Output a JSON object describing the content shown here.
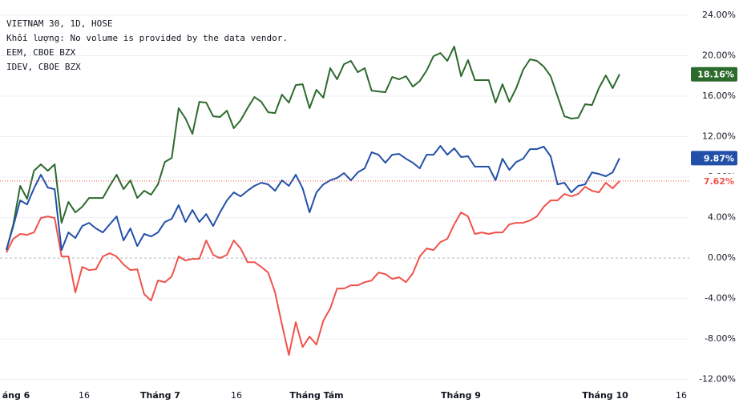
{
  "chart_data": {
    "type": "line",
    "legend_note": "Khối lượng: No volume is provided by the data vendor.",
    "x_labels": [
      "áng 6",
      "16",
      "Tháng 7",
      "16",
      "Tháng Tám",
      "Tháng 9",
      "Tháng 10",
      "16"
    ],
    "ylim": [
      -12.5,
      25.5
    ],
    "yticks": [
      {
        "value": 24,
        "label": "24.00%"
      },
      {
        "value": 20,
        "label": "20.00%"
      },
      {
        "value": 16,
        "label": "16.00%"
      },
      {
        "value": 12,
        "label": "12.00%"
      },
      {
        "value": 8,
        "label": "8.00%"
      },
      {
        "value": 4,
        "label": "4.00%"
      },
      {
        "value": 0,
        "label": "0.00%"
      },
      {
        "value": -4,
        "label": "-4.00%"
      },
      {
        "value": -8,
        "label": "-8.00%"
      },
      {
        "value": -12,
        "label": "-12.00%"
      }
    ],
    "grid": true,
    "series": [
      {
        "name": "VIETNAM 30, 1D, HOSE",
        "color": "#f0524a",
        "last_label": "7.62%",
        "values": [
          0.55,
          1.9,
          2.38,
          2.3,
          2.53,
          3.96,
          4.12,
          3.96,
          0.16,
          0.16,
          -3.4,
          -0.87,
          -1.19,
          -1.11,
          0.16,
          0.48,
          0.16,
          -0.63,
          -1.19,
          -1.11,
          -3.56,
          -4.2,
          -2.22,
          -2.38,
          -1.82,
          0.16,
          -0.24,
          -0.08,
          -0.08,
          1.74,
          0.32,
          0,
          0.32,
          1.74,
          0.95,
          -0.4,
          -0.4,
          -0.87,
          -1.43,
          -3.4,
          -6.57,
          -9.58,
          -6.33,
          -8.79,
          -7.76,
          -8.55,
          -6.18,
          -4.99,
          -3.01,
          -3.01,
          -2.69,
          -2.69,
          -2.38,
          -2.22,
          -1.43,
          -1.58,
          -2.06,
          -1.9,
          -2.38,
          -1.5,
          0.16,
          0.95,
          0.79,
          1.58,
          1.9,
          3.33,
          4.51,
          4.12,
          2.38,
          2.53,
          2.38,
          2.53,
          2.53,
          3.33,
          3.48,
          3.48,
          3.72,
          4.12,
          5.07,
          5.7,
          5.7,
          6.33,
          6.1,
          6.33,
          7.05,
          6.65,
          6.49,
          7.44,
          6.89,
          7.62
        ]
      },
      {
        "name": "EEM, CBOE BZX",
        "color": "#2d6a2d",
        "last_label": "18.16%",
        "values": [
          0.79,
          3.33,
          7.13,
          5.86,
          8.63,
          9.26,
          8.63,
          9.26,
          3.48,
          5.54,
          4.51,
          5.07,
          5.94,
          5.94,
          5.94,
          7.13,
          8.23,
          6.81,
          7.68,
          5.94,
          6.65,
          6.26,
          7.28,
          9.5,
          9.9,
          14.81,
          13.78,
          12.27,
          15.44,
          15.36,
          14.01,
          13.94,
          14.57,
          12.83,
          13.62,
          14.81,
          15.91,
          15.44,
          14.41,
          14.33,
          16.15,
          15.36,
          17.1,
          17.18,
          14.81,
          16.63,
          15.84,
          18.76,
          17.66,
          19.16,
          19.48,
          18.37,
          18.76,
          16.55,
          16.47,
          16.39,
          17.89,
          17.66,
          17.97,
          16.94,
          17.5,
          18.53,
          19.95,
          20.27,
          19.48,
          20.9,
          17.97,
          19.56,
          17.58,
          17.58,
          17.58,
          15.36,
          17.18,
          15.44,
          16.79,
          18.61,
          19.64,
          19.48,
          18.92,
          17.97,
          15.99,
          14.01,
          13.78,
          13.86,
          15.2,
          15.12,
          16.79,
          18.05,
          16.79,
          18.16
        ]
      },
      {
        "name": "IDEV, CBOE BZX",
        "color": "#2250a8",
        "last_label": "9.87%",
        "values": [
          0.79,
          3.17,
          5.7,
          5.3,
          6.89,
          8.23,
          6.97,
          6.81,
          0.79,
          2.53,
          1.98,
          3.17,
          3.48,
          2.93,
          2.53,
          3.33,
          4.12,
          1.74,
          2.93,
          1.19,
          2.38,
          2.14,
          2.53,
          3.56,
          3.88,
          5.23,
          3.56,
          4.75,
          3.56,
          4.35,
          3.17,
          4.51,
          5.7,
          6.49,
          6.1,
          6.65,
          7.13,
          7.44,
          7.28,
          6.65,
          7.68,
          7.13,
          8.23,
          6.89,
          4.51,
          6.49,
          7.28,
          7.68,
          7.92,
          8.39,
          7.68,
          8.47,
          8.87,
          10.45,
          10.21,
          9.42,
          10.21,
          10.29,
          9.82,
          9.42,
          8.87,
          10.21,
          10.21,
          11.08,
          10.21,
          10.85,
          9.98,
          10.06,
          9.03,
          9.03,
          9.03,
          7.68,
          9.82,
          8.71,
          9.5,
          9.82,
          10.77,
          10.77,
          11.01,
          10.06,
          7.28,
          7.44,
          6.49,
          7.13,
          7.28,
          8.47,
          8.31,
          8.08,
          8.47,
          9.87
        ]
      }
    ]
  }
}
